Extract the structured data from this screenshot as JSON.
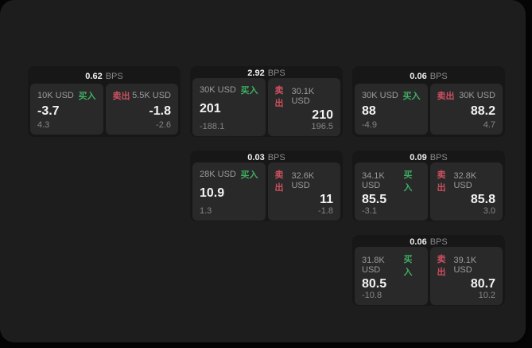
{
  "labels": {
    "buy": "买入",
    "sell": "卖出",
    "bps_unit": "BPS"
  },
  "colors": {
    "buy_green": "#3fae62",
    "sell_red": "#cd5060",
    "page_background": "#1d1d1d",
    "card_background": "#171717",
    "panel_background": "#292929"
  },
  "cards": [
    {
      "bps": "0.62",
      "buy": {
        "amount": "10K USD",
        "price": "-3.7",
        "delta": "4.3"
      },
      "sell": {
        "amount": "5.5K USD",
        "price": "-1.8",
        "delta": "-2.6"
      }
    },
    {
      "bps": "2.92",
      "buy": {
        "amount": "30K USD",
        "price": "201",
        "delta": "-188.1"
      },
      "sell": {
        "amount": "30.1K USD",
        "price": "210",
        "delta": "196.5"
      }
    },
    {
      "bps": "0.06",
      "buy": {
        "amount": "30K USD",
        "price": "88",
        "delta": "-4.9"
      },
      "sell": {
        "amount": "30K USD",
        "price": "88.2",
        "delta": "4.7"
      }
    },
    {
      "bps": "0.03",
      "buy": {
        "amount": "28K USD",
        "price": "10.9",
        "delta": "1.3"
      },
      "sell": {
        "amount": "32.6K USD",
        "price": "11",
        "delta": "-1.8"
      }
    },
    {
      "bps": "0.09",
      "buy": {
        "amount": "34.1K USD",
        "price": "85.5",
        "delta": "-3.1"
      },
      "sell": {
        "amount": "32.8K USD",
        "price": "85.8",
        "delta": "3.0"
      }
    },
    {
      "bps": "0.06",
      "buy": {
        "amount": "31.8K USD",
        "price": "80.5",
        "delta": "-10.8"
      },
      "sell": {
        "amount": "39.1K USD",
        "price": "80.7",
        "delta": "10.2"
      }
    }
  ]
}
